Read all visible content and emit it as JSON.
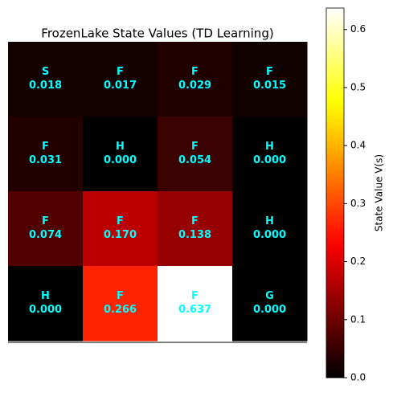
{
  "chart_data": {
    "type": "heatmap",
    "title": "FrozenLake State Values (TD Learning)",
    "cell_labels": [
      [
        "S",
        "F",
        "F",
        "F"
      ],
      [
        "F",
        "H",
        "F",
        "H"
      ],
      [
        "F",
        "F",
        "F",
        "H"
      ],
      [
        "H",
        "F",
        "F",
        "G"
      ]
    ],
    "values": [
      [
        0.018,
        0.017,
        0.029,
        0.015
      ],
      [
        0.031,
        0,
        0.054,
        0
      ],
      [
        0.074,
        0.17,
        0.138,
        0
      ],
      [
        0,
        0.266,
        0.637,
        0
      ]
    ],
    "value_labels": [
      [
        "0.018",
        "0.017",
        "0.029",
        "0.015"
      ],
      [
        "0.031",
        "0.000",
        "0.054",
        "0.000"
      ],
      [
        "0.074",
        "0.170",
        "0.138",
        "0.000"
      ],
      [
        "0.000",
        "0.266",
        "0.637",
        "0.000"
      ]
    ],
    "colormap": "hot",
    "text_color": "#00ffff",
    "colorbar_label": "State Value V(s)",
    "zlim": [
      0,
      0.637
    ],
    "zticks": [
      {
        "value": 0,
        "label": "0.0"
      },
      0.1,
      0.2,
      0.3,
      0.4,
      0.5,
      0.6
    ]
  }
}
